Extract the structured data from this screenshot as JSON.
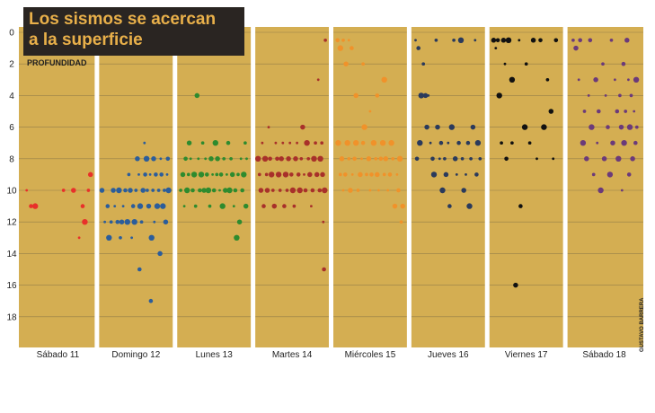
{
  "title": {
    "line1": "Los sismos se acercan",
    "line2": "a la superficie"
  },
  "colors": {
    "background": "#d4ae52",
    "separator": "#ffffff",
    "title_bg": "#2a2522",
    "title_text": "#e9b04a",
    "text": "#1f1f1f"
  },
  "credit": "GUSTAVO BARRERA",
  "chart_data": {
    "type": "scatter",
    "title": "Los sismos se acercan a la superficie",
    "xlabel": "",
    "ylabel": "PROFUNDIDAD",
    "ylim": [
      0,
      20
    ],
    "y_reversed": true,
    "y_ticks": [
      0,
      2,
      4,
      6,
      8,
      10,
      12,
      14,
      16,
      18
    ],
    "grid": true,
    "categories": [
      "Sábado 11",
      "Domingo 12",
      "Lunes 13",
      "Martes 14",
      "Miércoles 15",
      "Jueves 16",
      "Viernes 17",
      "Sábado 18"
    ],
    "series": [
      {
        "day": "Sábado 11",
        "color": "#e8302a",
        "points": [
          [
            0.06,
            10
          ],
          [
            0.12,
            11
          ],
          [
            0.18,
            11
          ],
          [
            0.58,
            10
          ],
          [
            0.72,
            10
          ],
          [
            0.8,
            13
          ],
          [
            0.85,
            11
          ],
          [
            0.88,
            12
          ],
          [
            0.93,
            10
          ],
          [
            0.96,
            9
          ]
        ]
      },
      {
        "day": "Domingo 12",
        "color": "#2b5d9b",
        "points": [
          [
            0.02,
            10
          ],
          [
            0.06,
            12
          ],
          [
            0.1,
            11
          ],
          [
            0.12,
            13
          ],
          [
            0.15,
            12
          ],
          [
            0.18,
            10
          ],
          [
            0.2,
            11
          ],
          [
            0.24,
            12
          ],
          [
            0.26,
            10
          ],
          [
            0.28,
            13
          ],
          [
            0.3,
            12
          ],
          [
            0.32,
            11
          ],
          [
            0.35,
            10
          ],
          [
            0.38,
            12
          ],
          [
            0.4,
            9
          ],
          [
            0.42,
            10
          ],
          [
            0.44,
            13
          ],
          [
            0.46,
            11
          ],
          [
            0.48,
            12
          ],
          [
            0.5,
            10
          ],
          [
            0.52,
            8
          ],
          [
            0.54,
            9
          ],
          [
            0.55,
            15
          ],
          [
            0.56,
            11
          ],
          [
            0.58,
            12
          ],
          [
            0.6,
            10
          ],
          [
            0.62,
            7
          ],
          [
            0.63,
            9
          ],
          [
            0.65,
            8
          ],
          [
            0.66,
            10
          ],
          [
            0.68,
            11
          ],
          [
            0.7,
            9
          ],
          [
            0.71,
            17
          ],
          [
            0.72,
            13
          ],
          [
            0.74,
            10
          ],
          [
            0.75,
            8
          ],
          [
            0.76,
            12
          ],
          [
            0.78,
            9
          ],
          [
            0.8,
            11
          ],
          [
            0.82,
            10
          ],
          [
            0.84,
            14
          ],
          [
            0.85,
            8
          ],
          [
            0.86,
            9
          ],
          [
            0.88,
            11
          ],
          [
            0.9,
            10
          ],
          [
            0.92,
            12
          ],
          [
            0.94,
            9
          ],
          [
            0.95,
            8
          ],
          [
            0.96,
            10
          ]
        ]
      },
      {
        "day": "Lunes 13",
        "color": "#2e8b2e",
        "points": [
          [
            0.03,
            10
          ],
          [
            0.06,
            9
          ],
          [
            0.08,
            11
          ],
          [
            0.1,
            8
          ],
          [
            0.12,
            10
          ],
          [
            0.14,
            9
          ],
          [
            0.15,
            7
          ],
          [
            0.17,
            8
          ],
          [
            0.2,
            10
          ],
          [
            0.22,
            9
          ],
          [
            0.24,
            11
          ],
          [
            0.26,
            4
          ],
          [
            0.28,
            8
          ],
          [
            0.3,
            10
          ],
          [
            0.32,
            9
          ],
          [
            0.34,
            7
          ],
          [
            0.36,
            10
          ],
          [
            0.38,
            8
          ],
          [
            0.4,
            9
          ],
          [
            0.42,
            10
          ],
          [
            0.44,
            11
          ],
          [
            0.46,
            8
          ],
          [
            0.48,
            9
          ],
          [
            0.5,
            10
          ],
          [
            0.52,
            7
          ],
          [
            0.54,
            9
          ],
          [
            0.55,
            8
          ],
          [
            0.58,
            10
          ],
          [
            0.6,
            9
          ],
          [
            0.62,
            11
          ],
          [
            0.64,
            8
          ],
          [
            0.66,
            10
          ],
          [
            0.68,
            9
          ],
          [
            0.7,
            7
          ],
          [
            0.72,
            10
          ],
          [
            0.74,
            8
          ],
          [
            0.76,
            9
          ],
          [
            0.78,
            11
          ],
          [
            0.8,
            10
          ],
          [
            0.82,
            13
          ],
          [
            0.84,
            9
          ],
          [
            0.86,
            12
          ],
          [
            0.88,
            8
          ],
          [
            0.9,
            10
          ],
          [
            0.92,
            9
          ],
          [
            0.94,
            7
          ],
          [
            0.95,
            11
          ],
          [
            0.96,
            8
          ]
        ]
      },
      {
        "day": "Martes 14",
        "color": "#a8302a",
        "points": [
          [
            0.02,
            8
          ],
          [
            0.04,
            9
          ],
          [
            0.06,
            10
          ],
          [
            0.08,
            7
          ],
          [
            0.1,
            11
          ],
          [
            0.12,
            8
          ],
          [
            0.14,
            9
          ],
          [
            0.15,
            10
          ],
          [
            0.17,
            6
          ],
          [
            0.19,
            8
          ],
          [
            0.21,
            9
          ],
          [
            0.23,
            10
          ],
          [
            0.25,
            11
          ],
          [
            0.27,
            7
          ],
          [
            0.29,
            8
          ],
          [
            0.31,
            9
          ],
          [
            0.33,
            10
          ],
          [
            0.35,
            8
          ],
          [
            0.37,
            7
          ],
          [
            0.39,
            11
          ],
          [
            0.41,
            9
          ],
          [
            0.43,
            10
          ],
          [
            0.45,
            8
          ],
          [
            0.47,
            7
          ],
          [
            0.49,
            9
          ],
          [
            0.51,
            10
          ],
          [
            0.53,
            11
          ],
          [
            0.55,
            8
          ],
          [
            0.57,
            7
          ],
          [
            0.59,
            9
          ],
          [
            0.61,
            10
          ],
          [
            0.63,
            8
          ],
          [
            0.65,
            6
          ],
          [
            0.67,
            9
          ],
          [
            0.69,
            10
          ],
          [
            0.71,
            7
          ],
          [
            0.73,
            8
          ],
          [
            0.75,
            9
          ],
          [
            0.77,
            11
          ],
          [
            0.79,
            10
          ],
          [
            0.81,
            8
          ],
          [
            0.83,
            7
          ],
          [
            0.85,
            9
          ],
          [
            0.87,
            3
          ],
          [
            0.89,
            10
          ],
          [
            0.9,
            8
          ],
          [
            0.92,
            7
          ],
          [
            0.93,
            9
          ],
          [
            0.94,
            12
          ],
          [
            0.95,
            15
          ],
          [
            0.96,
            10
          ],
          [
            0.97,
            0.5
          ]
        ]
      },
      {
        "day": "Miércoles 15",
        "color": "#f0922a",
        "points": [
          [
            0.04,
            0.5
          ],
          [
            0.08,
            1
          ],
          [
            0.12,
            0.5
          ],
          [
            0.16,
            2
          ],
          [
            0.2,
            0.5
          ],
          [
            0.24,
            1
          ],
          [
            0.05,
            7
          ],
          [
            0.08,
            9
          ],
          [
            0.1,
            8
          ],
          [
            0.12,
            10
          ],
          [
            0.15,
            9
          ],
          [
            0.18,
            7
          ],
          [
            0.2,
            8
          ],
          [
            0.22,
            10
          ],
          [
            0.25,
            9
          ],
          [
            0.28,
            8
          ],
          [
            0.3,
            7
          ],
          [
            0.33,
            10
          ],
          [
            0.36,
            9
          ],
          [
            0.38,
            8
          ],
          [
            0.4,
            7
          ],
          [
            0.42,
            6
          ],
          [
            0.45,
            9
          ],
          [
            0.48,
            8
          ],
          [
            0.5,
            10
          ],
          [
            0.52,
            9
          ],
          [
            0.55,
            7
          ],
          [
            0.58,
            8
          ],
          [
            0.6,
            9
          ],
          [
            0.62,
            10
          ],
          [
            0.65,
            8
          ],
          [
            0.68,
            7
          ],
          [
            0.7,
            9
          ],
          [
            0.72,
            8
          ],
          [
            0.75,
            10
          ],
          [
            0.78,
            9
          ],
          [
            0.8,
            7
          ],
          [
            0.82,
            8
          ],
          [
            0.85,
            11
          ],
          [
            0.88,
            9
          ],
          [
            0.9,
            10
          ],
          [
            0.92,
            8
          ],
          [
            0.94,
            12
          ],
          [
            0.96,
            11
          ],
          [
            0.5,
            5
          ],
          [
            0.6,
            4
          ],
          [
            0.7,
            3
          ],
          [
            0.4,
            2
          ],
          [
            0.3,
            4
          ]
        ]
      },
      {
        "day": "Jueves 16",
        "color": "#2a3a5c",
        "points": [
          [
            0.04,
            0.5
          ],
          [
            0.08,
            1
          ],
          [
            0.12,
            4
          ],
          [
            0.15,
            2
          ],
          [
            0.2,
            6
          ],
          [
            0.25,
            7
          ],
          [
            0.28,
            8
          ],
          [
            0.3,
            9
          ],
          [
            0.33,
            0.5
          ],
          [
            0.35,
            6
          ],
          [
            0.38,
            8
          ],
          [
            0.4,
            7
          ],
          [
            0.42,
            10
          ],
          [
            0.45,
            8
          ],
          [
            0.47,
            9
          ],
          [
            0.5,
            7
          ],
          [
            0.52,
            11
          ],
          [
            0.55,
            6
          ],
          [
            0.58,
            0.5
          ],
          [
            0.6,
            8
          ],
          [
            0.62,
            9
          ],
          [
            0.65,
            7
          ],
          [
            0.68,
            0.5
          ],
          [
            0.7,
            8
          ],
          [
            0.72,
            10
          ],
          [
            0.75,
            9
          ],
          [
            0.78,
            7
          ],
          [
            0.8,
            11
          ],
          [
            0.82,
            8
          ],
          [
            0.85,
            6
          ],
          [
            0.88,
            0.5
          ],
          [
            0.9,
            9
          ],
          [
            0.92,
            7
          ],
          [
            0.95,
            8
          ],
          [
            0.18,
            4
          ],
          [
            0.22,
            4
          ],
          [
            0.06,
            8
          ],
          [
            0.1,
            7
          ]
        ]
      },
      {
        "day": "Viernes 17",
        "color": "#111111",
        "points": [
          [
            0.04,
            0.5
          ],
          [
            0.07,
            1
          ],
          [
            0.1,
            0.5
          ],
          [
            0.12,
            4
          ],
          [
            0.15,
            7
          ],
          [
            0.18,
            0.5
          ],
          [
            0.2,
            2
          ],
          [
            0.22,
            8
          ],
          [
            0.25,
            0.5
          ],
          [
            0.3,
            7
          ],
          [
            0.35,
            16
          ],
          [
            0.4,
            0.5
          ],
          [
            0.42,
            11
          ],
          [
            0.48,
            6
          ],
          [
            0.55,
            7
          ],
          [
            0.6,
            0.5
          ],
          [
            0.65,
            8
          ],
          [
            0.7,
            0.5
          ],
          [
            0.75,
            6
          ],
          [
            0.8,
            3
          ],
          [
            0.85,
            5
          ],
          [
            0.88,
            8
          ],
          [
            0.92,
            0.5
          ],
          [
            0.3,
            3
          ],
          [
            0.5,
            2
          ]
        ]
      },
      {
        "day": "Sábado 18",
        "color": "#6b3a7a",
        "points": [
          [
            0.06,
            0.5
          ],
          [
            0.1,
            1
          ],
          [
            0.14,
            3
          ],
          [
            0.16,
            0.5
          ],
          [
            0.2,
            7
          ],
          [
            0.22,
            5
          ],
          [
            0.25,
            8
          ],
          [
            0.28,
            4
          ],
          [
            0.3,
            0.5
          ],
          [
            0.32,
            6
          ],
          [
            0.35,
            9
          ],
          [
            0.38,
            3
          ],
          [
            0.4,
            7
          ],
          [
            0.42,
            5
          ],
          [
            0.45,
            10
          ],
          [
            0.48,
            2
          ],
          [
            0.5,
            8
          ],
          [
            0.52,
            4
          ],
          [
            0.55,
            6
          ],
          [
            0.58,
            9
          ],
          [
            0.6,
            0.5
          ],
          [
            0.62,
            7
          ],
          [
            0.65,
            3
          ],
          [
            0.68,
            5
          ],
          [
            0.7,
            8
          ],
          [
            0.72,
            4
          ],
          [
            0.74,
            6
          ],
          [
            0.75,
            10
          ],
          [
            0.77,
            2
          ],
          [
            0.78,
            7
          ],
          [
            0.8,
            5
          ],
          [
            0.82,
            0.5
          ],
          [
            0.84,
            3
          ],
          [
            0.85,
            9
          ],
          [
            0.86,
            6
          ],
          [
            0.88,
            4
          ],
          [
            0.9,
            8
          ],
          [
            0.92,
            5
          ],
          [
            0.94,
            7
          ],
          [
            0.95,
            3
          ],
          [
            0.96,
            6
          ]
        ]
      }
    ]
  }
}
